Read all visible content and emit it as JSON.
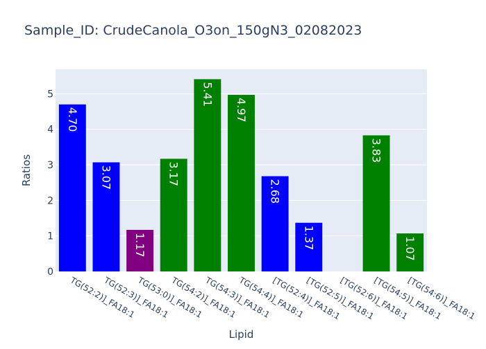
{
  "chart_data": {
    "type": "bar",
    "title": "Sample_ID: CrudeCanola_O3on_150gN3_02082023",
    "xlabel": "Lipid",
    "ylabel": "Ratios",
    "categories": [
      "TG(52:2)]_FA18:1",
      "TG(52:3)]_FA18:1",
      "TG(53:0)]_FA18:1",
      "TG(54:2)]_FA18:1",
      "TG(54:3)]_FA18:1",
      "TG(54:4)]_FA18:1",
      "[TG(52:4)]_FA18:1",
      "[TG(52:5)]_FA18:1",
      "[TG(52:6)]_FA18:1",
      "[TG(54:5)]_FA18:1",
      "[TG(54:6)]_FA18:1"
    ],
    "values": [
      4.7,
      3.07,
      1.17,
      3.17,
      5.41,
      4.97,
      2.68,
      1.37,
      null,
      3.83,
      1.07
    ],
    "labels": [
      "4.70",
      "3.07",
      "1.17",
      "3.17",
      "5.41",
      "4.97",
      "2.68",
      "1.37",
      "",
      "3.83",
      "1.07"
    ],
    "colors": [
      "#0000ff",
      "#0000ff",
      "#800080",
      "#008000",
      "#008000",
      "#008000",
      "#0000ff",
      "#0000ff",
      "#008000",
      "#008000",
      "#008000"
    ],
    "ylim": [
      0,
      5.69
    ],
    "yticks": [
      0,
      1,
      2,
      3,
      4,
      5
    ],
    "grid": true,
    "legend": "none",
    "plot_bg": "#e5ecf6",
    "text_color": "#2a3f5f"
  }
}
